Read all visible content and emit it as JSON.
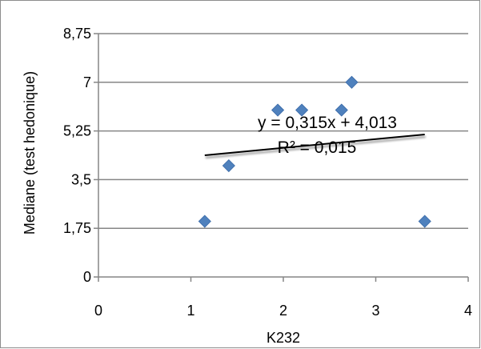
{
  "chart_data": {
    "type": "scatter",
    "xlabel": "K232",
    "ylabel": "Mediane (test hedonique)",
    "xlim": [
      0,
      4
    ],
    "ylim": [
      0,
      8.75
    ],
    "x_ticks": [
      {
        "value": 0,
        "label": "0"
      },
      {
        "value": 1,
        "label": "1"
      },
      {
        "value": 2,
        "label": "2"
      },
      {
        "value": 3,
        "label": "3"
      },
      {
        "value": 4,
        "label": "4"
      }
    ],
    "y_ticks": [
      {
        "value": 0,
        "label": "0"
      },
      {
        "value": 1.75,
        "label": "1,75"
      },
      {
        "value": 3.5,
        "label": "3,5"
      },
      {
        "value": 5.25,
        "label": "5,25"
      },
      {
        "value": 7,
        "label": "7"
      },
      {
        "value": 8.75,
        "label": "8,75"
      }
    ],
    "grid": "horizontal",
    "points": [
      {
        "x": 1.15,
        "y": 2
      },
      {
        "x": 1.41,
        "y": 4
      },
      {
        "x": 1.94,
        "y": 6
      },
      {
        "x": 2.2,
        "y": 6
      },
      {
        "x": 2.63,
        "y": 6
      },
      {
        "x": 2.74,
        "y": 7
      },
      {
        "x": 3.53,
        "y": 2
      }
    ],
    "marker_color": "#4f81bd",
    "trendline": {
      "slope": 0.315,
      "intercept": 4.013,
      "x_range": [
        1.15,
        3.53
      ],
      "color": "#000000",
      "equation": "y = 0,315x + 4,013",
      "r_squared": "R² = 0,015"
    }
  }
}
